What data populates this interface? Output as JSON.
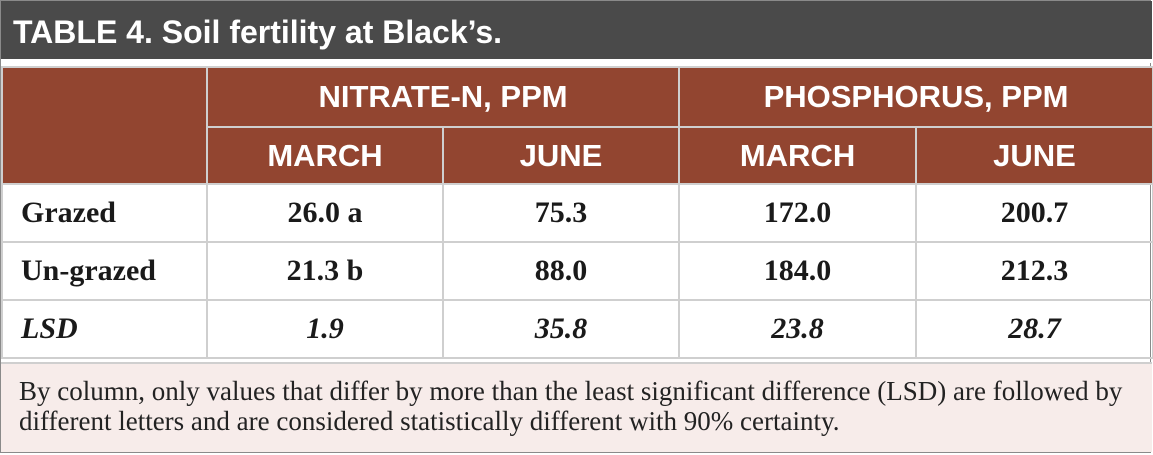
{
  "title": {
    "lead": "TABLE 4.",
    "text": "Soil fertility at Black’s."
  },
  "columns": {
    "group1": "NITRATE-N, PPM",
    "group2": "PHOSPHORUS, PPM",
    "sub": [
      "MARCH",
      "JUNE",
      "MARCH",
      "JUNE"
    ]
  },
  "rows": [
    {
      "label": "Grazed",
      "values": [
        "26.0 a",
        "75.3",
        "172.0",
        "200.7"
      ]
    },
    {
      "label": "Un-grazed",
      "values": [
        "21.3 b",
        "88.0",
        "184.0",
        "212.3"
      ]
    },
    {
      "label": "LSD",
      "values": [
        "1.9",
        "35.8",
        "23.8",
        "28.7"
      ]
    }
  ],
  "note": "By column, only values that differ by more than the least significant difference (LSD) are followed by different letters and are considered statistically different with 90% certainty.",
  "colors": {
    "title_bg": "#4a4a4a",
    "header_bg": "#924530",
    "note_bg": "#f7ecea"
  }
}
